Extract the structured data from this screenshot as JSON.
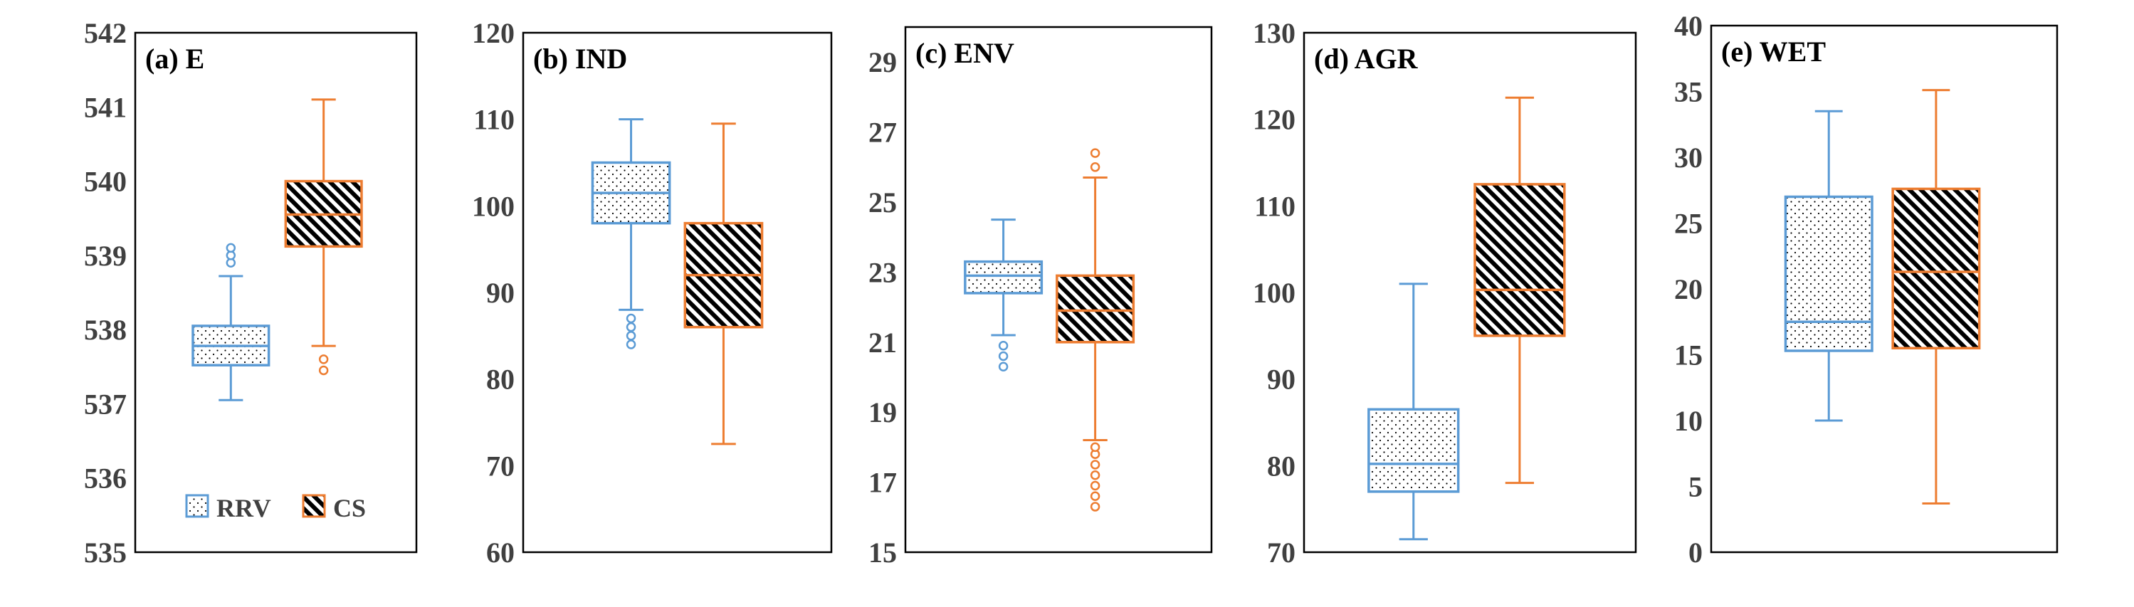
{
  "colors": {
    "rrv": "#5b9bd5",
    "cs": "#ed7d31",
    "hatch": "#000000",
    "frame": "#000000",
    "tick": "#404040"
  },
  "legend": {
    "placement": "bottom-left of panel (a)",
    "items": [
      {
        "name": "RRV",
        "pattern": "dots",
        "color": "#5b9bd5"
      },
      {
        "name": "CS",
        "pattern": "diagonal-hatch",
        "color": "#ed7d31"
      }
    ]
  },
  "chart_data": [
    {
      "type": "box",
      "title": "(a) E",
      "ylim": [
        535,
        542
      ],
      "yticks": [
        535,
        536,
        537,
        538,
        539,
        540,
        541,
        542
      ],
      "series": [
        {
          "name": "RRV",
          "whisker_low": 537.05,
          "q1": 537.52,
          "median": 537.78,
          "q3": 538.05,
          "whisker_high": 538.72,
          "outliers": [
            538.9,
            539.0,
            539.1
          ]
        },
        {
          "name": "CS",
          "whisker_low": 537.78,
          "q1": 539.12,
          "median": 539.55,
          "q3": 540.0,
          "whisker_high": 541.1,
          "outliers": [
            537.45,
            537.6
          ]
        }
      ]
    },
    {
      "type": "box",
      "title": "(b) IND",
      "ylim": [
        60,
        120
      ],
      "yticks": [
        60,
        70,
        80,
        90,
        100,
        110,
        120
      ],
      "series": [
        {
          "name": "RRV",
          "whisker_low": 88,
          "q1": 98,
          "median": 101.5,
          "q3": 105,
          "whisker_high": 110,
          "outliers": [
            84,
            85,
            86,
            87
          ]
        },
        {
          "name": "CS",
          "whisker_low": 72.5,
          "q1": 86,
          "median": 92,
          "q3": 98,
          "whisker_high": 109.5,
          "outliers": []
        }
      ]
    },
    {
      "type": "box",
      "title": "(c) ENV",
      "ylim": [
        15,
        30
      ],
      "yticks": [
        15,
        17,
        19,
        21,
        23,
        25,
        27,
        29
      ],
      "series": [
        {
          "name": "RRV",
          "whisker_low": 21.2,
          "q1": 22.4,
          "median": 22.9,
          "q3": 23.3,
          "whisker_high": 24.5,
          "outliers": [
            20.3,
            20.6,
            20.9
          ]
        },
        {
          "name": "CS",
          "whisker_low": 18.2,
          "q1": 21.0,
          "median": 21.9,
          "q3": 22.9,
          "whisker_high": 25.7,
          "outliers": [
            16.3,
            16.6,
            16.9,
            17.2,
            17.5,
            17.8,
            18.0,
            26.0,
            26.4
          ]
        }
      ]
    },
    {
      "type": "box",
      "title": "(d) AGR",
      "ylim": [
        70,
        130
      ],
      "yticks": [
        70,
        80,
        90,
        100,
        110,
        120,
        130
      ],
      "series": [
        {
          "name": "RRV",
          "whisker_low": 71.5,
          "q1": 77,
          "median": 80.2,
          "q3": 86.5,
          "whisker_high": 101,
          "outliers": []
        },
        {
          "name": "CS",
          "whisker_low": 78,
          "q1": 95,
          "median": 100.3,
          "q3": 112.5,
          "whisker_high": 122.5,
          "outliers": []
        }
      ]
    },
    {
      "type": "box",
      "title": "(e) WET",
      "ylim": [
        0,
        40
      ],
      "yticks": [
        0,
        5,
        10,
        15,
        20,
        25,
        30,
        35,
        40
      ],
      "series": [
        {
          "name": "RRV",
          "whisker_low": 10,
          "q1": 15.3,
          "median": 17.5,
          "q3": 27,
          "whisker_high": 33.5,
          "outliers": []
        },
        {
          "name": "CS",
          "whisker_low": 3.7,
          "q1": 15.5,
          "median": 21.3,
          "q3": 27.6,
          "whisker_high": 35.1,
          "outliers": []
        }
      ]
    }
  ]
}
